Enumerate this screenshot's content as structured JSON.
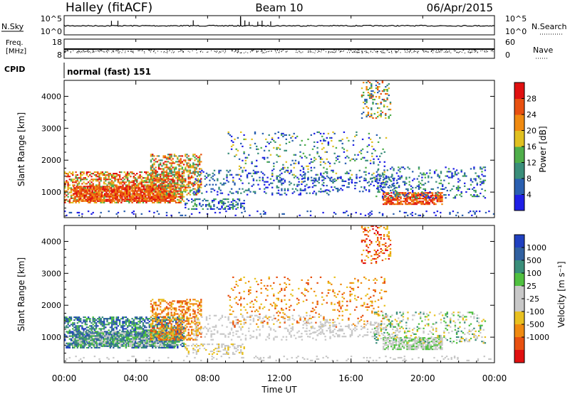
{
  "header": {
    "station": "Halley (fitACF)",
    "beam": "Beam 10",
    "date": "06/Apr/2015"
  },
  "top_panels": {
    "nsky": {
      "left_label": "N.Sky",
      "left_ticks": [
        "10^5",
        "10^0"
      ],
      "right_label": "N.Search",
      "right_ticks": [
        "10^5",
        "10^0"
      ]
    },
    "freq": {
      "left_label_line1": "Freq.",
      "left_label_line2": "[MHz]",
      "left_ticks": [
        "18",
        "8"
      ],
      "right_label": "Nave",
      "right_ticks": [
        "60",
        "0"
      ]
    },
    "cpid": {
      "label": "CPID",
      "value": "normal (fast) 151"
    }
  },
  "colors": {
    "power_scale": [
      "#1f1fe6",
      "#2a5fb0",
      "#3a8e7a",
      "#4fae4a",
      "#e0c020",
      "#f08a10",
      "#e85010",
      "#e01010"
    ],
    "velocity_scale": [
      "#2040c0",
      "#3060a0",
      "#3a8e7a",
      "#50c040",
      "#c8c8c8",
      "#c8c8c8",
      "#e8c020",
      "#f08a10",
      "#e85010",
      "#e01010"
    ]
  },
  "chart_data": [
    {
      "type": "heatmap",
      "title": "Power",
      "xlabel": "",
      "ylabel": "Slant Range [km]",
      "xlim": [
        "00:00",
        "00:00"
      ],
      "x_ticks": [
        "00:00",
        "04:00",
        "08:00",
        "12:00",
        "16:00",
        "20:00",
        "00:00"
      ],
      "ylim": [
        200,
        4500
      ],
      "y_ticks": [
        1000,
        2000,
        3000,
        4000
      ],
      "colorbar": {
        "label": "Power [dB]",
        "range": [
          0,
          32
        ],
        "tick_labels": [
          "4",
          "8",
          "12",
          "16",
          "20",
          "24",
          "28"
        ]
      }
    },
    {
      "type": "heatmap",
      "title": "Velocity",
      "xlabel": "Time UT",
      "ylabel": "Slant Range [km]",
      "xlim": [
        "00:00",
        "00:00"
      ],
      "x_ticks": [
        "00:00",
        "04:00",
        "08:00",
        "12:00",
        "16:00",
        "20:00",
        "00:00"
      ],
      "ylim": [
        200,
        4500
      ],
      "y_ticks": [
        1000,
        2000,
        3000,
        4000
      ],
      "colorbar": {
        "label": "Velocity [m s⁻¹]",
        "tick_labels": [
          "1000",
          "500",
          "100",
          "25",
          "-25",
          "-100",
          "-500",
          "-1000"
        ]
      }
    }
  ]
}
